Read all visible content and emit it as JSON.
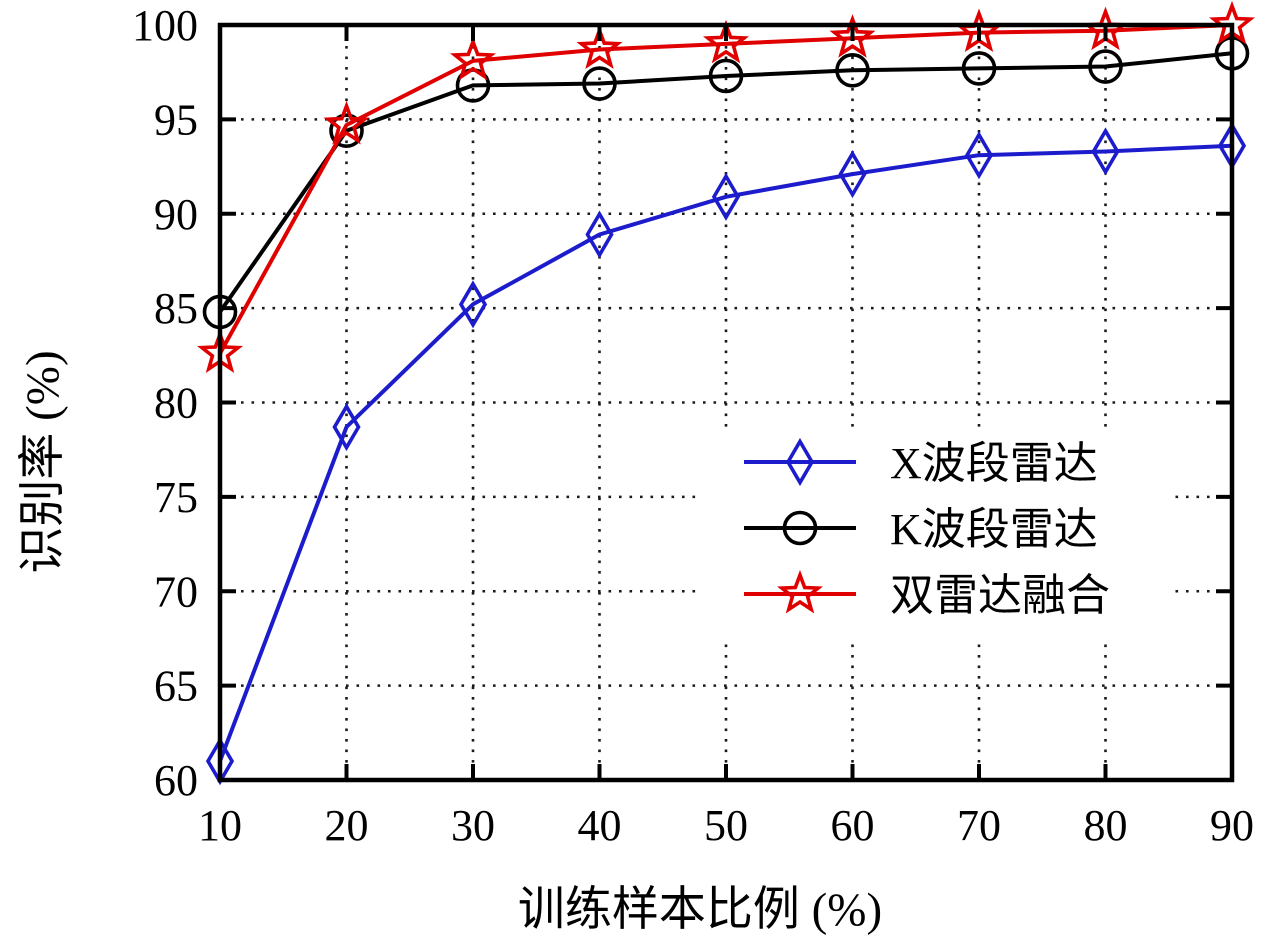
{
  "figure": {
    "background_color": "#ffffff",
    "text_color": "#000000"
  },
  "chart_data": {
    "type": "line",
    "title": "",
    "xlabel": "训练样本比例 (%)",
    "ylabel": "识别率 (%)",
    "x": [
      10,
      20,
      30,
      40,
      50,
      60,
      70,
      80,
      90
    ],
    "xlim": [
      10,
      90
    ],
    "ylim": [
      60,
      100
    ],
    "xticks": [
      10,
      20,
      30,
      40,
      50,
      60,
      70,
      80,
      90
    ],
    "yticks": [
      60,
      65,
      70,
      75,
      80,
      85,
      90,
      95,
      100
    ],
    "grid": "dotted",
    "grid_color": "#1a1a1a",
    "legend_position": "inside-right-middle",
    "legend_background": "#ffffff",
    "series": [
      {
        "name": "X波段雷达",
        "color": "#1c1ccc",
        "marker": "diamond",
        "values": [
          61.0,
          78.7,
          85.2,
          88.9,
          90.9,
          92.1,
          93.1,
          93.3,
          93.6
        ]
      },
      {
        "name": "K波段雷达",
        "color": "#000000",
        "marker": "circle",
        "values": [
          84.8,
          94.4,
          96.8,
          96.9,
          97.3,
          97.6,
          97.7,
          97.8,
          98.5
        ]
      },
      {
        "name": "双雷达融合",
        "color": "#e00000",
        "marker": "star",
        "values": [
          82.6,
          94.7,
          98.1,
          98.7,
          99.0,
          99.3,
          99.6,
          99.7,
          100.0
        ]
      }
    ]
  }
}
